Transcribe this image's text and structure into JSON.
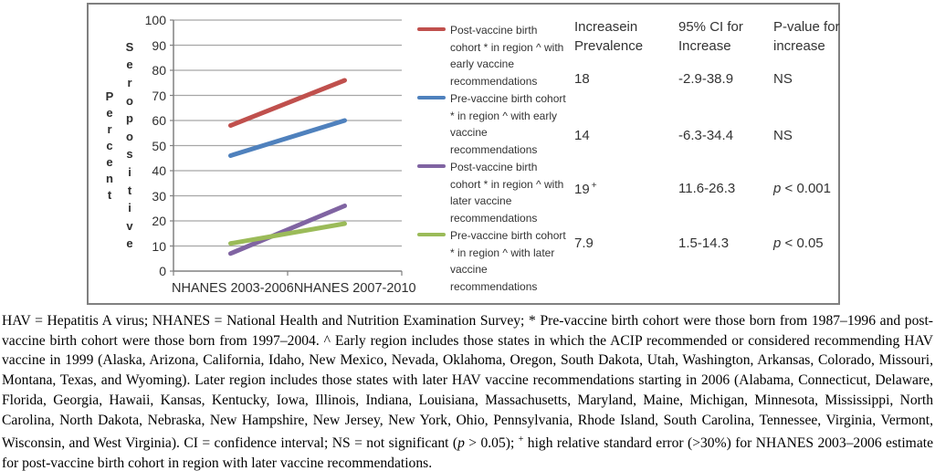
{
  "figure": {
    "legend": [
      {
        "color": "#C0504D",
        "label": "Post-vaccine birth cohort * in region ^ with early vaccine recommendations"
      },
      {
        "color": "#4F81BD",
        "label": "Pre-vaccine birth cohort * in region ^ with early vaccine recommendations"
      },
      {
        "color": "#8064A2",
        "label": "Post-vaccine birth cohort * in region ^ with later vaccine recommendations"
      },
      {
        "color": "#9BBB59",
        "label": "Pre-vaccine birth cohort * in region ^ with later vaccine recommendations"
      }
    ],
    "table": {
      "columns": [
        {
          "header_lines": [
            "Increasein",
            "Prevalence"
          ]
        },
        {
          "header_lines": [
            "95% CI for",
            "Increase"
          ]
        },
        {
          "header_lines": [
            "P-value for",
            "increase"
          ]
        }
      ],
      "rows": [
        {
          "increase": "18",
          "increase_sup": "",
          "ci": "-2.9-38.9",
          "p_italic": "",
          "p_text": "NS"
        },
        {
          "increase": "14",
          "increase_sup": "",
          "ci": "-6.3-34.4",
          "p_italic": "",
          "p_text": "NS"
        },
        {
          "increase": "19",
          "increase_sup": "+",
          "ci": "11.6-26.3",
          "p_italic": "p",
          "p_text": " < 0.001"
        },
        {
          "increase": "7.9",
          "increase_sup": "",
          "ci": "1.5-14.3",
          "p_italic": "p",
          "p_text": " < 0.05"
        }
      ]
    }
  },
  "chart_data": {
    "type": "line",
    "title": "",
    "categories": [
      "NHANES 2003-2006",
      "NHANES 2007-2010"
    ],
    "series": [
      {
        "name": "Post-vaccine birth cohort * in region ^ with early vaccine recommendations",
        "color": "#C0504D",
        "values": [
          58,
          76
        ]
      },
      {
        "name": "Pre-vaccine birth cohort * in region ^ with early vaccine recommendations",
        "color": "#4F81BD",
        "values": [
          46,
          60
        ]
      },
      {
        "name": "Post-vaccine birth cohort * in region ^ with later vaccine recommendations",
        "color": "#8064A2",
        "values": [
          7,
          26
        ]
      },
      {
        "name": "Pre-vaccine birth cohort * in region ^ with later vaccine recommendations",
        "color": "#9BBB59",
        "values": [
          11,
          18.9
        ]
      }
    ],
    "ylabel_words": [
      "Percent",
      "Seropositive"
    ],
    "xlabel": "",
    "ylim": [
      0,
      100
    ],
    "ytick_step": 10,
    "grid": true,
    "legend_position": "right",
    "colors": {
      "gridline": "#A6A6A6",
      "axis": "#808080",
      "panel_border": "#808080",
      "text": "#2f2f2f"
    }
  },
  "caption": {
    "segments": [
      {
        "style": "normal",
        "text": "HAV = Hepatitis A virus; NHANES = National Health and Nutrition Examination Survey; * Pre-vaccine birth cohort were those born from 1987–1996 and post-vaccine birth cohort were those born from 1997–2004. ^ Early region includes those states in which the ACIP recommended or considered recommending HAV vaccine in 1999 (Alaska, Arizona, California, Idaho, New Mexico, Nevada, Oklahoma, Oregon, South Dakota, Utah, Washington, Arkansas, Colorado, Missouri, Montana, Texas, and Wyoming). Later region includes those states with later HAV vaccine recommendations starting in 2006 (Alabama, Connecticut, Delaware, Florida, Georgia, Hawaii, Kansas, Kentucky, Iowa, Illinois, Indiana, Louisiana, Massachusetts, Maryland, Maine, Michigan, Minnesota, Mississippi, North Carolina, North Dakota, Nebraska, New Hampshire, New Jersey, New York, Ohio, Pennsylvania, Rhode Island, South Carolina, Tennessee, Virginia, Vermont, Wisconsin, and West Virginia). CI = confidence interval; NS = not significant ("
      },
      {
        "style": "italic",
        "text": "p"
      },
      {
        "style": "normal",
        "text": " > 0.05); "
      },
      {
        "style": "sup",
        "text": "+"
      },
      {
        "style": "normal",
        "text": " high relative standard error (>30%) for NHANES 2003–2006 estimate for post-vaccine birth cohort in region with later vaccine recommendations."
      }
    ]
  }
}
